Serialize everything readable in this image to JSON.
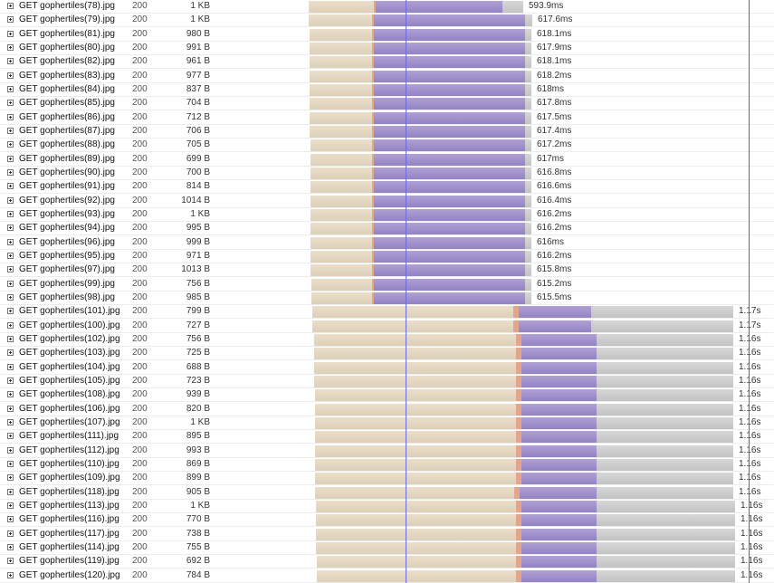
{
  "colors": {
    "waiting": "#e4d7c1",
    "sending": "#e3a58c",
    "receiving": "#a191cc",
    "remaining": "#cdcdcd",
    "dom_content_loaded_line": "#6b6be0",
    "load_line": "#d04040"
  },
  "icons": {
    "expand": "plus-box-icon"
  },
  "requests": [
    {
      "url": "GET gophertiles(78).jpg",
      "status": "200",
      "size": "1 KB",
      "time": "593.9ms"
    },
    {
      "url": "GET gophertiles(79).jpg",
      "status": "200",
      "size": "1 KB",
      "time": "617.6ms"
    },
    {
      "url": "GET gophertiles(81).jpg",
      "status": "200",
      "size": "980 B",
      "time": "618.1ms"
    },
    {
      "url": "GET gophertiles(80).jpg",
      "status": "200",
      "size": "991 B",
      "time": "617.9ms"
    },
    {
      "url": "GET gophertiles(82).jpg",
      "status": "200",
      "size": "961 B",
      "time": "618.1ms"
    },
    {
      "url": "GET gophertiles(83).jpg",
      "status": "200",
      "size": "977 B",
      "time": "618.2ms"
    },
    {
      "url": "GET gophertiles(84).jpg",
      "status": "200",
      "size": "837 B",
      "time": "618ms"
    },
    {
      "url": "GET gophertiles(85).jpg",
      "status": "200",
      "size": "704 B",
      "time": "617.8ms"
    },
    {
      "url": "GET gophertiles(86).jpg",
      "status": "200",
      "size": "712 B",
      "time": "617.5ms"
    },
    {
      "url": "GET gophertiles(87).jpg",
      "status": "200",
      "size": "706 B",
      "time": "617.4ms"
    },
    {
      "url": "GET gophertiles(88).jpg",
      "status": "200",
      "size": "705 B",
      "time": "617.2ms"
    },
    {
      "url": "GET gophertiles(89).jpg",
      "status": "200",
      "size": "699 B",
      "time": "617ms"
    },
    {
      "url": "GET gophertiles(90).jpg",
      "status": "200",
      "size": "700 B",
      "time": "616.8ms"
    },
    {
      "url": "GET gophertiles(91).jpg",
      "status": "200",
      "size": "814 B",
      "time": "616.6ms"
    },
    {
      "url": "GET gophertiles(92).jpg",
      "status": "200",
      "size": "1014 B",
      "time": "616.4ms"
    },
    {
      "url": "GET gophertiles(93).jpg",
      "status": "200",
      "size": "1 KB",
      "time": "616.2ms"
    },
    {
      "url": "GET gophertiles(94).jpg",
      "status": "200",
      "size": "995 B",
      "time": "616.2ms"
    },
    {
      "url": "GET gophertiles(96).jpg",
      "status": "200",
      "size": "999 B",
      "time": "616ms"
    },
    {
      "url": "GET gophertiles(95).jpg",
      "status": "200",
      "size": "971 B",
      "time": "616.2ms"
    },
    {
      "url": "GET gophertiles(97).jpg",
      "status": "200",
      "size": "1013 B",
      "time": "615.8ms"
    },
    {
      "url": "GET gophertiles(99).jpg",
      "status": "200",
      "size": "756 B",
      "time": "615.2ms"
    },
    {
      "url": "GET gophertiles(98).jpg",
      "status": "200",
      "size": "985 B",
      "time": "615.5ms"
    },
    {
      "url": "GET gophertiles(101).jpg",
      "status": "200",
      "size": "799 B",
      "time": "1.17s"
    },
    {
      "url": "GET gophertiles(100).jpg",
      "status": "200",
      "size": "727 B",
      "time": "1.17s"
    },
    {
      "url": "GET gophertiles(102).jpg",
      "status": "200",
      "size": "756 B",
      "time": "1.16s"
    },
    {
      "url": "GET gophertiles(103).jpg",
      "status": "200",
      "size": "725 B",
      "time": "1.16s"
    },
    {
      "url": "GET gophertiles(104).jpg",
      "status": "200",
      "size": "688 B",
      "time": "1.16s"
    },
    {
      "url": "GET gophertiles(105).jpg",
      "status": "200",
      "size": "723 B",
      "time": "1.16s"
    },
    {
      "url": "GET gophertiles(108).jpg",
      "status": "200",
      "size": "939 B",
      "time": "1.16s"
    },
    {
      "url": "GET gophertiles(106).jpg",
      "status": "200",
      "size": "820 B",
      "time": "1.16s"
    },
    {
      "url": "GET gophertiles(107).jpg",
      "status": "200",
      "size": "1 KB",
      "time": "1.16s"
    },
    {
      "url": "GET gophertiles(111).jpg",
      "status": "200",
      "size": "895 B",
      "time": "1.16s"
    },
    {
      "url": "GET gophertiles(112).jpg",
      "status": "200",
      "size": "993 B",
      "time": "1.16s"
    },
    {
      "url": "GET gophertiles(110).jpg",
      "status": "200",
      "size": "869 B",
      "time": "1.16s"
    },
    {
      "url": "GET gophertiles(109).jpg",
      "status": "200",
      "size": "899 B",
      "time": "1.16s"
    },
    {
      "url": "GET gophertiles(118).jpg",
      "status": "200",
      "size": "905 B",
      "time": "1.16s"
    },
    {
      "url": "GET gophertiles(113).jpg",
      "status": "200",
      "size": "1 KB",
      "time": "1.16s"
    },
    {
      "url": "GET gophertiles(116).jpg",
      "status": "200",
      "size": "770 B",
      "time": "1.16s"
    },
    {
      "url": "GET gophertiles(117).jpg",
      "status": "200",
      "size": "738 B",
      "time": "1.16s"
    },
    {
      "url": "GET gophertiles(114).jpg",
      "status": "200",
      "size": "755 B",
      "time": "1.16s"
    },
    {
      "url": "GET gophertiles(119).jpg",
      "status": "200",
      "size": "692 B",
      "time": "1.16s"
    },
    {
      "url": "GET gophertiles(120).jpg",
      "status": "200",
      "size": "784 B",
      "time": "1.16s"
    }
  ]
}
